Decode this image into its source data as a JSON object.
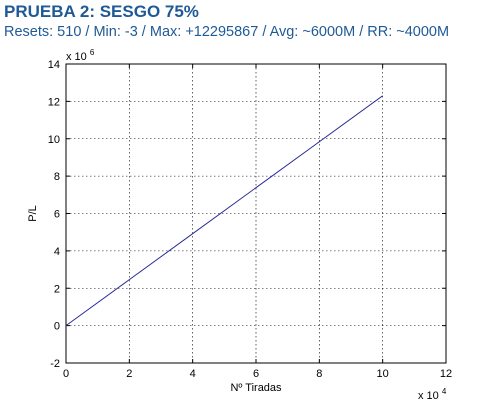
{
  "header": {
    "title": "PRUEBA 2: SESGO 75%",
    "subtitle": "Resets: 510 / Min: -3 / Max: +12295867 / Avg: ~6000M / RR: ~4000M"
  },
  "chart_data": {
    "type": "line",
    "xlabel": "Nº Tiradas",
    "ylabel": "P/L",
    "xlim": [
      0,
      12
    ],
    "ylim": [
      -2,
      14
    ],
    "x_ticks": [
      "0",
      "2",
      "4",
      "6",
      "8",
      "10",
      "12"
    ],
    "y_ticks": [
      "-2",
      "0",
      "2",
      "4",
      "6",
      "8",
      "10",
      "12",
      "14"
    ],
    "x_exponent": "x 10",
    "x_exponent_power": "4",
    "y_exponent": "x 10",
    "y_exponent_power": "6",
    "grid": true,
    "line_color": "#2b2b9b",
    "series": [
      {
        "x": [
          0,
          2,
          4,
          6,
          8,
          10
        ],
        "y": [
          0,
          2.46,
          4.92,
          7.38,
          9.84,
          12.3
        ]
      }
    ]
  }
}
